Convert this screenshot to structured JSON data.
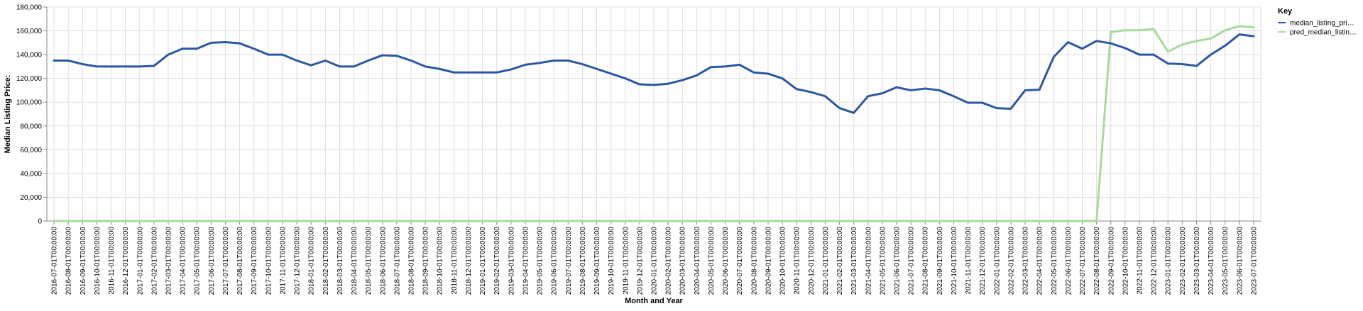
{
  "chart_data": {
    "type": "line",
    "xlabel": "Month and Year",
    "ylabel": "Median Listing Price:",
    "ylim": [
      0,
      180000
    ],
    "yticks": [
      0,
      20000,
      40000,
      60000,
      80000,
      100000,
      120000,
      140000,
      160000,
      180000
    ],
    "ytick_labels": [
      "0",
      "20,000",
      "40,000",
      "60,000",
      "80,000",
      "100,000",
      "120,000",
      "140,000",
      "160,000",
      "180,000"
    ],
    "grid": true,
    "legend": {
      "title": "Key",
      "position": "right",
      "entries": [
        "median_listing_pri…",
        "pred_median_listin…"
      ]
    },
    "x": [
      "2016-07-01T00:00:00",
      "2016-08-01T00:00:00",
      "2016-09-01T00:00:00",
      "2016-10-01T00:00:00",
      "2016-11-01T00:00:00",
      "2016-12-01T00:00:00",
      "2017-01-01T00:00:00",
      "2017-02-01T00:00:00",
      "2017-03-01T00:00:00",
      "2017-04-01T00:00:00",
      "2017-05-01T00:00:00",
      "2017-06-01T00:00:00",
      "2017-07-01T00:00:00",
      "2017-08-01T00:00:00",
      "2017-09-01T00:00:00",
      "2017-10-01T00:00:00",
      "2017-11-01T00:00:00",
      "2017-12-01T00:00:00",
      "2018-01-01T00:00:00",
      "2018-02-01T00:00:00",
      "2018-03-01T00:00:00",
      "2018-04-01T00:00:00",
      "2018-05-01T00:00:00",
      "2018-06-01T00:00:00",
      "2018-07-01T00:00:00",
      "2018-08-01T00:00:00",
      "2018-09-01T00:00:00",
      "2018-10-01T00:00:00",
      "2018-11-01T00:00:00",
      "2018-12-01T00:00:00",
      "2019-01-01T00:00:00",
      "2019-02-01T00:00:00",
      "2019-03-01T00:00:00",
      "2019-04-01T00:00:00",
      "2019-05-01T00:00:00",
      "2019-06-01T00:00:00",
      "2019-07-01T00:00:00",
      "2019-08-01T00:00:00",
      "2019-09-01T00:00:00",
      "2019-10-01T00:00:00",
      "2019-11-01T00:00:00",
      "2019-12-01T00:00:00",
      "2020-01-01T00:00:00",
      "2020-02-01T00:00:00",
      "2020-03-01T00:00:00",
      "2020-04-01T00:00:00",
      "2020-05-01T00:00:00",
      "2020-06-01T00:00:00",
      "2020-07-01T00:00:00",
      "2020-08-01T00:00:00",
      "2020-09-01T00:00:00",
      "2020-10-01T00:00:00",
      "2020-11-01T00:00:00",
      "2020-12-01T00:00:00",
      "2021-01-01T00:00:00",
      "2021-02-01T00:00:00",
      "2021-03-01T00:00:00",
      "2021-04-01T00:00:00",
      "2021-05-01T00:00:00",
      "2021-06-01T00:00:00",
      "2021-07-01T00:00:00",
      "2021-08-01T00:00:00",
      "2021-09-01T00:00:00",
      "2021-10-01T00:00:00",
      "2021-11-01T00:00:00",
      "2021-12-01T00:00:00",
      "2022-01-01T00:00:00",
      "2022-02-01T00:00:00",
      "2022-03-01T00:00:00",
      "2022-04-01T00:00:00",
      "2022-05-01T00:00:00",
      "2022-06-01T00:00:00",
      "2022-07-01T00:00:00",
      "2022-08-01T00:00:00",
      "2022-09-01T00:00:00",
      "2022-10-01T00:00:00",
      "2022-11-01T00:00:00",
      "2022-12-01T00:00:00",
      "2023-01-01T00:00:00",
      "2023-02-01T00:00:00",
      "2023-03-01T00:00:00",
      "2023-04-01T00:00:00",
      "2023-05-01T00:00:00",
      "2023-06-01T00:00:00",
      "2023-07-01T00:00:00"
    ],
    "series": [
      {
        "name": "median_listing_pri…",
        "color": "#2b58a4",
        "values": [
          135000,
          135000,
          132000,
          130000,
          130000,
          130000,
          130000,
          130500,
          140000,
          145000,
          145000,
          150000,
          150500,
          149500,
          145000,
          140000,
          140000,
          135000,
          131000,
          135000,
          130000,
          130000,
          135000,
          139500,
          139000,
          135000,
          130000,
          128000,
          125000,
          125000,
          125000,
          125000,
          127500,
          131500,
          133000,
          135000,
          135000,
          132000,
          128000,
          124000,
          120000,
          115000,
          114500,
          115500,
          118500,
          122500,
          129500,
          130000,
          131500,
          125000,
          124000,
          120000,
          111000,
          108500,
          105000,
          95000,
          91000,
          105000,
          107500,
          112500,
          110000,
          111500,
          110000,
          105000,
          99500,
          99500,
          95000,
          94500,
          110000,
          110500,
          138000,
          150500,
          145000,
          151500,
          149500,
          145500,
          140000,
          140000,
          132500,
          132000,
          130500,
          140000,
          147500,
          157000,
          155500
        ]
      },
      {
        "name": "pred_median_listin…",
        "color": "#a6dc9a",
        "values": [
          0,
          0,
          0,
          0,
          0,
          0,
          0,
          0,
          0,
          0,
          0,
          0,
          0,
          0,
          0,
          0,
          0,
          0,
          0,
          0,
          0,
          0,
          0,
          0,
          0,
          0,
          0,
          0,
          0,
          0,
          0,
          0,
          0,
          0,
          0,
          0,
          0,
          0,
          0,
          0,
          0,
          0,
          0,
          0,
          0,
          0,
          0,
          0,
          0,
          0,
          0,
          0,
          0,
          0,
          0,
          0,
          0,
          0,
          0,
          0,
          0,
          0,
          0,
          0,
          0,
          0,
          0,
          0,
          0,
          0,
          0,
          0,
          0,
          0,
          159000,
          160500,
          160500,
          161500,
          142500,
          148500,
          151500,
          153500,
          160500,
          164000,
          163000
        ]
      }
    ]
  }
}
